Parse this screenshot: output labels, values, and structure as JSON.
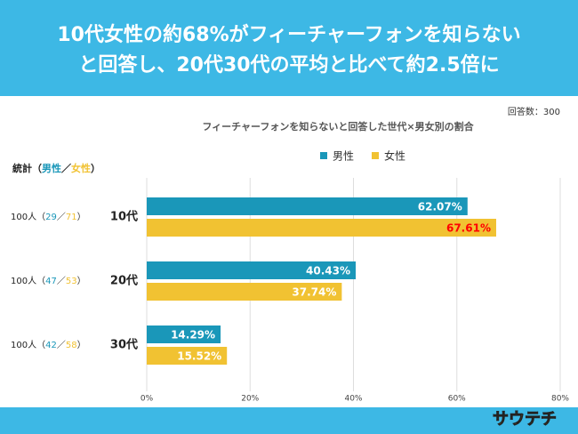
{
  "header": {
    "line1": "10代女性の約68%がフィーチャーフォンを知らない",
    "line2": "と回答し、20代30代の平均と比べて約2.5倍に"
  },
  "respondents": "回答数：300",
  "logo": "サウテチ",
  "stats": {
    "heading": "統計",
    "open": "（",
    "male": "男性",
    "sep": "／",
    "female": "女性",
    "close": "）",
    "rows": [
      {
        "total": "100人",
        "male": 29,
        "female": 71
      },
      {
        "total": "100人",
        "male": 47,
        "female": 53
      },
      {
        "total": "100人",
        "male": 42,
        "female": 58
      }
    ]
  },
  "chart_data": {
    "type": "hbar",
    "title": "フィーチャーフォンを知らないと回答した世代×男女別の割合",
    "categories": [
      "10代",
      "20代",
      "30代"
    ],
    "series": [
      {
        "name": "男性",
        "color": "#1a97b9",
        "values": [
          62.07,
          40.43,
          14.29
        ],
        "value_labels": [
          "62.07%",
          "40.43%",
          "14.29%"
        ],
        "label_colors": [
          "#ffffff",
          "#ffffff",
          "#ffffff"
        ]
      },
      {
        "name": "女性",
        "color": "#f1c232",
        "values": [
          67.61,
          37.74,
          15.52
        ],
        "value_labels": [
          "67.61%",
          "37.74%",
          "15.52%"
        ],
        "label_colors": [
          "#ff0000",
          "#ffffff",
          "#ffffff"
        ]
      }
    ],
    "xlim": [
      0,
      80
    ],
    "xticks": [
      {
        "value": 0,
        "label": "0%"
      },
      {
        "value": 20,
        "label": "20%"
      },
      {
        "value": 40,
        "label": "40%"
      },
      {
        "value": 60,
        "label": "60%"
      },
      {
        "value": 80,
        "label": "80%"
      }
    ],
    "grid": true,
    "legend": "top"
  }
}
